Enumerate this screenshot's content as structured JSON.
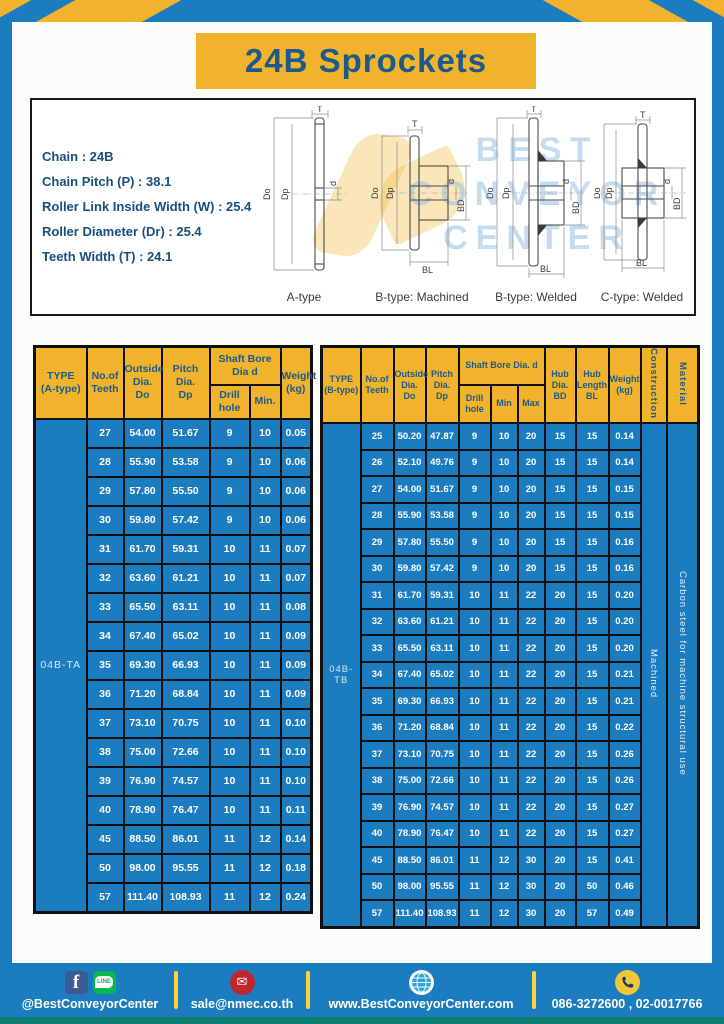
{
  "page": {
    "title": "24B Sprockets",
    "colors": {
      "frame_blue": "#1b7cc0",
      "accent_yellow": "#f0b32b",
      "header_text_blue": "#1c5a8c",
      "teal_strip": "#0f7c72",
      "cell_text": "#ffffff"
    }
  },
  "specs": {
    "lines": [
      "Chain  : 24B",
      "Chain Pitch (P)  :  38.1",
      "Roller Link Inside Width (W)  :  25.4",
      "Roller Diameter (Dr)  : 25.4",
      "Teeth Width (T)  :  24.1"
    ]
  },
  "diagram": {
    "labels": {
      "t": "T",
      "do": "Do",
      "dp": "Dp",
      "d": "d",
      "bd": "BD",
      "bl": "BL"
    },
    "captions": [
      "A-type",
      "B-type: Machined",
      "B-type: Welded",
      "C-type: Welded"
    ],
    "watermark_lines": [
      "BEST",
      "CONVEYOR",
      "CENTER"
    ]
  },
  "table_a": {
    "type_label": "04B-TA",
    "headers": {
      "type": "TYPE\n(A-type)",
      "teeth": "No.of\nTeeth",
      "outside": "Outside\nDia.\nDo",
      "pitch": "Pitch Dia.\nDp",
      "shaft": "Shaft Bore Dia d",
      "drill": "Drill hole",
      "min": "Min.",
      "weight": "Weight\n(kg)"
    },
    "rows": [
      [
        "27",
        "54.00",
        "51.67",
        "9",
        "10",
        "0.05"
      ],
      [
        "28",
        "55.90",
        "53.58",
        "9",
        "10",
        "0.06"
      ],
      [
        "29",
        "57.80",
        "55.50",
        "9",
        "10",
        "0.06"
      ],
      [
        "30",
        "59.80",
        "57.42",
        "9",
        "10",
        "0.06"
      ],
      [
        "31",
        "61.70",
        "59.31",
        "10",
        "11",
        "0.07"
      ],
      [
        "32",
        "63.60",
        "61.21",
        "10",
        "11",
        "0.07"
      ],
      [
        "33",
        "65.50",
        "63.11",
        "10",
        "11",
        "0.08"
      ],
      [
        "34",
        "67.40",
        "65.02",
        "10",
        "11",
        "0.09"
      ],
      [
        "35",
        "69.30",
        "66.93",
        "10",
        "11",
        "0.09"
      ],
      [
        "36",
        "71.20",
        "68.84",
        "10",
        "11",
        "0.09"
      ],
      [
        "37",
        "73.10",
        "70.75",
        "10",
        "11",
        "0.10"
      ],
      [
        "38",
        "75.00",
        "72.66",
        "10",
        "11",
        "0.10"
      ],
      [
        "39",
        "76.90",
        "74.57",
        "10",
        "11",
        "0.10"
      ],
      [
        "40",
        "78.90",
        "76.47",
        "10",
        "11",
        "0.11"
      ],
      [
        "45",
        "88.50",
        "86.01",
        "11",
        "12",
        "0.14"
      ],
      [
        "50",
        "98.00",
        "95.55",
        "11",
        "12",
        "0.18"
      ],
      [
        "57",
        "111.40",
        "108.93",
        "11",
        "12",
        "0.24"
      ]
    ]
  },
  "table_b": {
    "type_label": "04B-TB",
    "construction": "Machined",
    "material": "Carbon steel for machine structural use",
    "headers": {
      "type": "TYPE\n(B-type)",
      "teeth": "No.of\nTeeth",
      "outside": "Outside\nDia.\nDo",
      "pitch": "Pitch\nDia.\nDp",
      "shaft": "Shaft Bore Dia.  d",
      "drill": "Drill hole",
      "min": "Min",
      "max": "Max",
      "hub_dia": "Hub\nDia.\nBD",
      "hub_len": "Hub\nLength\nBL",
      "weight": "Weight\n(kg)",
      "construction": "Construction",
      "material": "Material"
    },
    "rows": [
      [
        "25",
        "50.20",
        "47.87",
        "9",
        "10",
        "20",
        "15",
        "15",
        "0.14"
      ],
      [
        "26",
        "52.10",
        "49.76",
        "9",
        "10",
        "20",
        "15",
        "15",
        "0.14"
      ],
      [
        "27",
        "54.00",
        "51.67",
        "9",
        "10",
        "20",
        "15",
        "15",
        "0.15"
      ],
      [
        "28",
        "55.90",
        "53.58",
        "9",
        "10",
        "20",
        "15",
        "15",
        "0.15"
      ],
      [
        "29",
        "57.80",
        "55.50",
        "9",
        "10",
        "20",
        "15",
        "15",
        "0.16"
      ],
      [
        "30",
        "59.80",
        "57.42",
        "9",
        "10",
        "20",
        "15",
        "15",
        "0.16"
      ],
      [
        "31",
        "61.70",
        "59.31",
        "10",
        "11",
        "22",
        "20",
        "15",
        "0.20"
      ],
      [
        "32",
        "63.60",
        "61.21",
        "10",
        "11",
        "22",
        "20",
        "15",
        "0.20"
      ],
      [
        "33",
        "65.50",
        "63.11",
        "10",
        "11",
        "22",
        "20",
        "15",
        "0.20"
      ],
      [
        "34",
        "67.40",
        "65.02",
        "10",
        "11",
        "22",
        "20",
        "15",
        "0.21"
      ],
      [
        "35",
        "69.30",
        "66.93",
        "10",
        "11",
        "22",
        "20",
        "15",
        "0.21"
      ],
      [
        "36",
        "71.20",
        "68.84",
        "10",
        "11",
        "22",
        "20",
        "15",
        "0.22"
      ],
      [
        "37",
        "73.10",
        "70.75",
        "10",
        "11",
        "22",
        "20",
        "15",
        "0.26"
      ],
      [
        "38",
        "75.00",
        "72.66",
        "10",
        "11",
        "22",
        "20",
        "15",
        "0.26"
      ],
      [
        "39",
        "76.90",
        "74.57",
        "10",
        "11",
        "22",
        "20",
        "15",
        "0.27"
      ],
      [
        "40",
        "78.90",
        "76.47",
        "10",
        "11",
        "22",
        "20",
        "15",
        "0.27"
      ],
      [
        "45",
        "88.50",
        "86.01",
        "11",
        "12",
        "30",
        "20",
        "15",
        "0.41"
      ],
      [
        "50",
        "98.00",
        "95.55",
        "11",
        "12",
        "30",
        "20",
        "50",
        "0.46"
      ],
      [
        "57",
        "111.40",
        "108.93",
        "11",
        "12",
        "30",
        "20",
        "57",
        "0.49"
      ]
    ]
  },
  "footer": {
    "social_label": "@BestConveyorCenter",
    "email": "sale@nmec.co.th",
    "website": "www.BestConveyorCenter.com",
    "phone": "086-3272600 , 02-0017766",
    "fb_letter": "f",
    "line_text": "LINE",
    "mail_glyph": "✉"
  }
}
